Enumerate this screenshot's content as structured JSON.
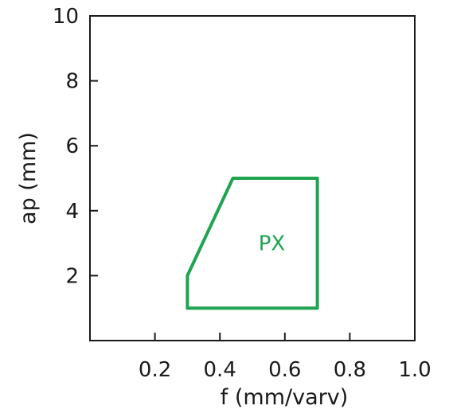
{
  "chart_data": {
    "type": "area",
    "xlabel": "f (mm/varv)",
    "ylabel": "ap (mm)",
    "xlim": [
      0.0,
      1.0
    ],
    "ylim": [
      0,
      10
    ],
    "x_ticks": [
      {
        "value": 0.2,
        "label": "0.2"
      },
      {
        "value": 0.4,
        "label": "0.4"
      },
      {
        "value": 0.6,
        "label": "0.6"
      },
      {
        "value": 0.8,
        "label": "0.8"
      },
      {
        "value": 1.0,
        "label": "1.0"
      }
    ],
    "y_ticks": [
      {
        "value": 2,
        "label": "2"
      },
      {
        "value": 4,
        "label": "4"
      },
      {
        "value": 6,
        "label": "6"
      },
      {
        "value": 8,
        "label": "8"
      },
      {
        "value": 10,
        "label": "10"
      }
    ],
    "grid": false,
    "series": [
      {
        "name": "PX",
        "color": "#1ea350",
        "points": [
          [
            0.3,
            1.0
          ],
          [
            0.7,
            1.0
          ],
          [
            0.7,
            5.0
          ],
          [
            0.44,
            5.0
          ],
          [
            0.3,
            2.0
          ]
        ],
        "label_at": [
          0.56,
          3.0
        ]
      }
    ]
  }
}
